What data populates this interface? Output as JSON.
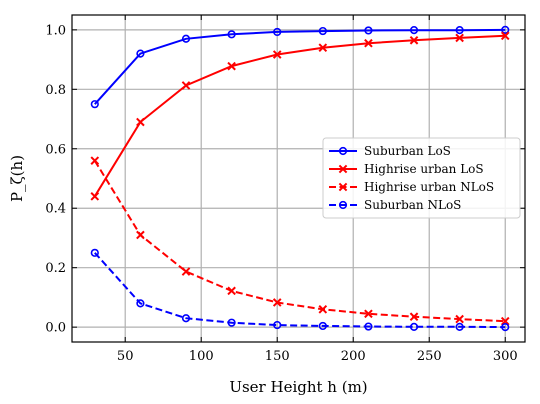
{
  "chart_data": {
    "type": "line",
    "xlabel": "User Height h (m)",
    "ylabel": "P_ζ(h)",
    "xlim": [
      15,
      313
    ],
    "ylim": [
      -0.05,
      1.05
    ],
    "xticks": [
      50,
      100,
      150,
      200,
      250,
      300
    ],
    "yticks": [
      0.0,
      0.2,
      0.4,
      0.6,
      0.8,
      1.0
    ],
    "grid": true,
    "legend_position": "center-right",
    "x": [
      30,
      60,
      90,
      120,
      150,
      180,
      210,
      240,
      270,
      300
    ],
    "series": [
      {
        "name": "Suburban LoS",
        "color": "#0000ff",
        "dash": "solid",
        "marker": "circle",
        "values": [
          0.75,
          0.92,
          0.97,
          0.985,
          0.993,
          0.996,
          0.998,
          0.999,
          0.999,
          1.0
        ]
      },
      {
        "name": "Highrise urban LoS",
        "color": "#ff0000",
        "dash": "solid",
        "marker": "x",
        "values": [
          0.44,
          0.69,
          0.813,
          0.878,
          0.917,
          0.94,
          0.955,
          0.965,
          0.973,
          0.98
        ]
      },
      {
        "name": "Highrise urban NLoS",
        "color": "#ff0000",
        "dash": "dashed",
        "marker": "x",
        "values": [
          0.56,
          0.31,
          0.187,
          0.122,
          0.083,
          0.06,
          0.045,
          0.035,
          0.027,
          0.02
        ]
      },
      {
        "name": "Suburban NLoS",
        "color": "#0000ff",
        "dash": "dashed",
        "marker": "circle",
        "values": [
          0.25,
          0.08,
          0.03,
          0.015,
          0.007,
          0.004,
          0.002,
          0.001,
          0.001,
          0.0
        ]
      }
    ]
  }
}
